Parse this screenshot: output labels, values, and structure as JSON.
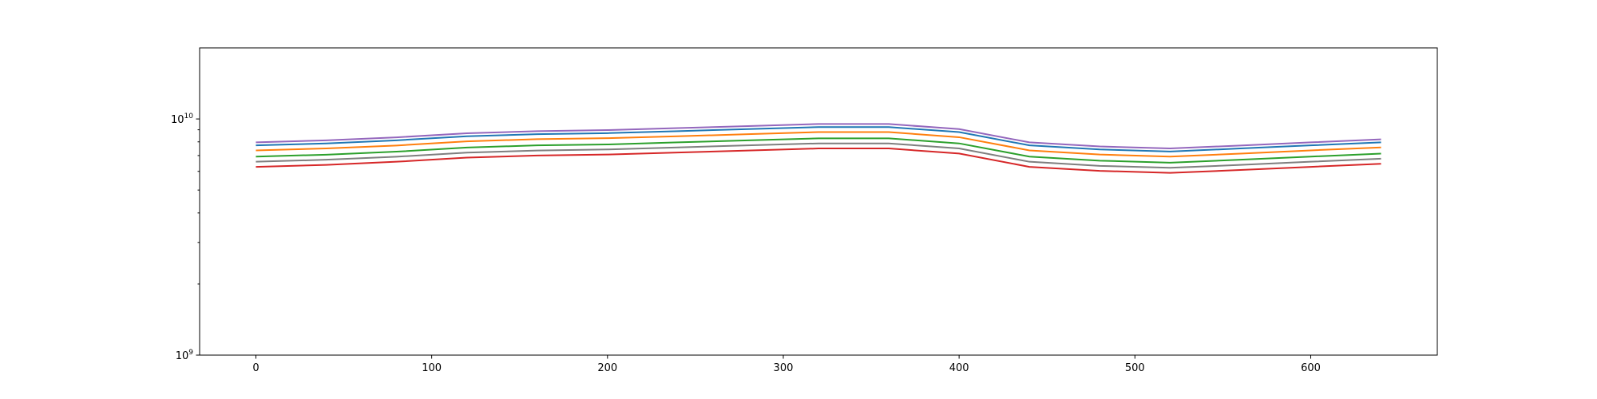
{
  "chart_data": {
    "type": "line",
    "x": [
      0,
      40,
      80,
      120,
      160,
      200,
      240,
      280,
      320,
      360,
      400,
      440,
      480,
      520,
      560,
      600,
      640
    ],
    "series": [
      {
        "color": "#1f77b4",
        "values": [
          7730000000.0,
          7880000000.0,
          8120000000.0,
          8450000000.0,
          8620000000.0,
          8710000000.0,
          8880000000.0,
          9060000000.0,
          9240000000.0,
          9240000000.0,
          8800000000.0,
          7730000000.0,
          7430000000.0,
          7280000000.0,
          7500000000.0,
          7730000000.0,
          7960000000.0
        ]
      },
      {
        "color": "#ff7f0e",
        "values": [
          7360000000.0,
          7500000000.0,
          7720000000.0,
          8040000000.0,
          8210000000.0,
          8290000000.0,
          8450000000.0,
          8620000000.0,
          8800000000.0,
          8800000000.0,
          8370000000.0,
          7360000000.0,
          7070000000.0,
          6930000000.0,
          7130000000.0,
          7360000000.0,
          7580000000.0
        ]
      },
      {
        "color": "#2ca02c",
        "values": [
          6930000000.0,
          7060000000.0,
          7270000000.0,
          7570000000.0,
          7730000000.0,
          7800000000.0,
          7960000000.0,
          8120000000.0,
          8280000000.0,
          8280000000.0,
          7880000000.0,
          6930000000.0,
          6660000000.0,
          6530000000.0,
          6720000000.0,
          6930000000.0,
          7130000000.0
        ]
      },
      {
        "color": "#d62728",
        "values": [
          6270000000.0,
          6390000000.0,
          6590000000.0,
          6860000000.0,
          7000000000.0,
          7070000000.0,
          7210000000.0,
          7350000000.0,
          7500000000.0,
          7500000000.0,
          7140000000.0,
          6270000000.0,
          6030000000.0,
          5910000000.0,
          6080000000.0,
          6270000000.0,
          6460000000.0
        ]
      },
      {
        "color": "#9467bd",
        "values": [
          7960000000.0,
          8120000000.0,
          8360000000.0,
          8700000000.0,
          8880000000.0,
          8970000000.0,
          9150000000.0,
          9330000000.0,
          9520000000.0,
          9520000000.0,
          9060000000.0,
          7960000000.0,
          7650000000.0,
          7500000000.0,
          7720000000.0,
          7960000000.0,
          8200000000.0
        ]
      },
      {
        "color": "#7f7f7f",
        "values": [
          6590000000.0,
          6720000000.0,
          6920000000.0,
          7200000000.0,
          7350000000.0,
          7430000000.0,
          7580000000.0,
          7730000000.0,
          7880000000.0,
          7880000000.0,
          7500000000.0,
          6590000000.0,
          6330000000.0,
          6210000000.0,
          6390000000.0,
          6590000000.0,
          6790000000.0
        ]
      }
    ],
    "xlim": [
      -32,
      672
    ],
    "xticks": [
      0,
      100,
      200,
      300,
      400,
      500,
      600
    ],
    "yscale": "log",
    "ylim": [
      1000000000.0,
      20000000000.0
    ],
    "yticks": [
      {
        "value": 1000000000.0,
        "label": "10^9"
      },
      {
        "value": 10000000000.0,
        "label": "10^10"
      }
    ],
    "minor_yticks": [
      2000000000.0,
      3000000000.0,
      4000000000.0,
      5000000000.0,
      6000000000.0,
      7000000000.0,
      8000000000.0,
      9000000000.0
    ]
  }
}
